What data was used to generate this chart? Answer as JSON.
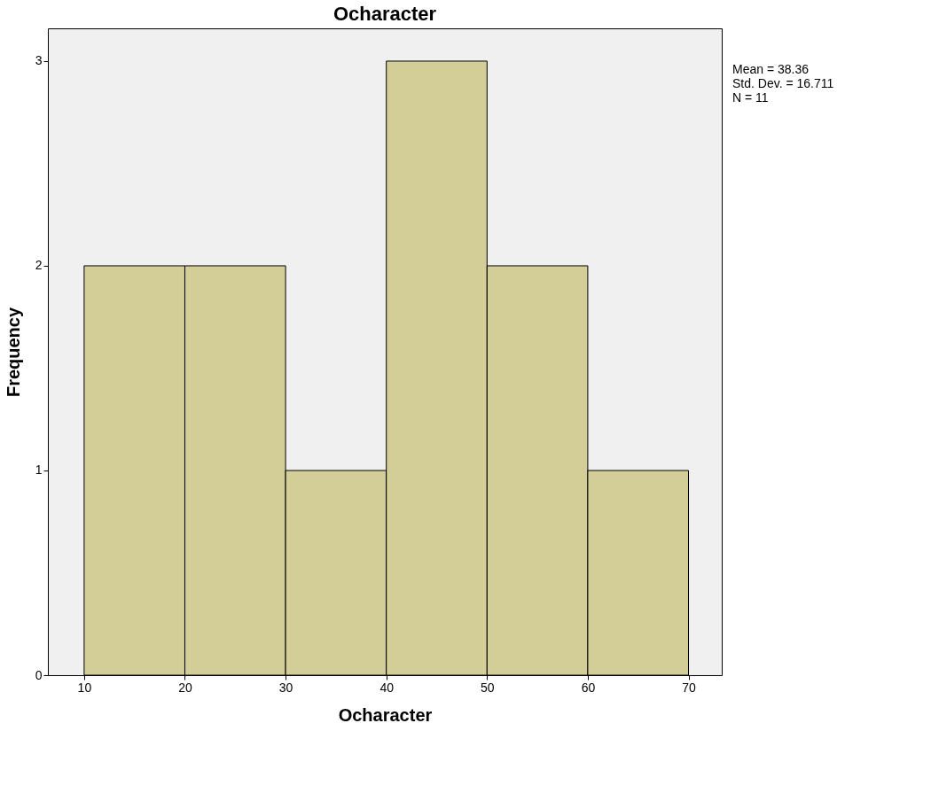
{
  "chart_data": {
    "type": "histogram",
    "title": "Ocharacter",
    "xlabel": "Ocharacter",
    "ylabel": "Frequency",
    "bins": [
      10,
      20,
      30,
      40,
      50,
      60,
      70
    ],
    "values": [
      2,
      2,
      1,
      3,
      2,
      1
    ],
    "color": "#d3ce97",
    "xlim": [
      6.4,
      73.3
    ],
    "xticks": [
      10,
      20,
      30,
      40,
      50,
      60,
      70
    ],
    "ylim": [
      0,
      3.16
    ],
    "yticks": [
      0,
      1,
      2,
      3
    ],
    "grid": false,
    "annotations": [
      "Mean = 38.36",
      "Std. Dev. = 16.711",
      "N = 11"
    ]
  }
}
